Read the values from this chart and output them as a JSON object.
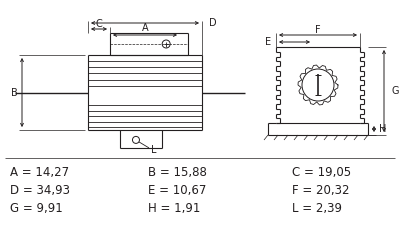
{
  "background_color": "#ffffff",
  "line_color": "#231f20",
  "param_rows": [
    [
      "A = 14,27",
      "B = 15,88",
      "C = 19,05"
    ],
    [
      "D = 34,93",
      "E = 10,67",
      "F = 20,32"
    ],
    [
      "G = 9,91",
      "H = 1,91",
      "L = 2,39"
    ]
  ]
}
